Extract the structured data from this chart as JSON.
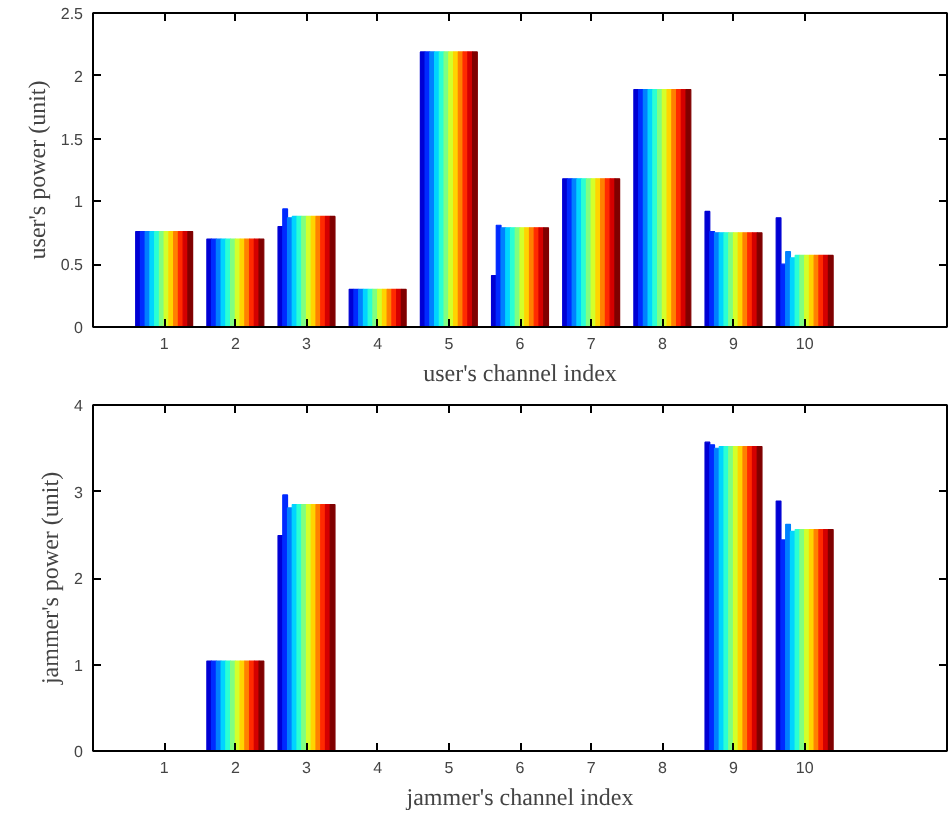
{
  "chart_data": [
    {
      "type": "bar",
      "xlabel": "user's channel index",
      "ylabel": "user's power (unit)",
      "x": [
        1,
        2,
        3,
        4,
        5,
        6,
        7,
        8,
        9,
        10
      ],
      "xlim": [
        0,
        12
      ],
      "xticks": [
        1,
        2,
        3,
        4,
        5,
        6,
        7,
        8,
        9,
        10
      ],
      "ylim": [
        0,
        2.5
      ],
      "yticks": [
        0,
        0.5,
        1,
        1.5,
        2,
        2.5
      ],
      "grid": false,
      "series": [
        {
          "color": "#0000d4",
          "values": [
            0.76,
            0.7,
            0.8,
            0.3,
            2.19,
            0.41,
            1.18,
            1.89,
            0.92,
            0.87
          ]
        },
        {
          "color": "#002aff",
          "values": [
            0.76,
            0.7,
            0.94,
            0.3,
            2.19,
            0.81,
            1.18,
            1.89,
            0.76,
            0.5
          ]
        },
        {
          "color": "#0080ff",
          "values": [
            0.76,
            0.7,
            0.87,
            0.3,
            2.19,
            0.79,
            1.18,
            1.89,
            0.75,
            0.6
          ]
        },
        {
          "color": "#00d4ff",
          "values": [
            0.76,
            0.7,
            0.88,
            0.3,
            2.19,
            0.79,
            1.18,
            1.89,
            0.75,
            0.55
          ]
        },
        {
          "color": "#2affd4",
          "values": [
            0.76,
            0.7,
            0.88,
            0.3,
            2.19,
            0.79,
            1.18,
            1.89,
            0.75,
            0.57
          ]
        },
        {
          "color": "#80ff80",
          "values": [
            0.76,
            0.7,
            0.88,
            0.3,
            2.19,
            0.79,
            1.18,
            1.89,
            0.75,
            0.57
          ]
        },
        {
          "color": "#d4ff2a",
          "values": [
            0.76,
            0.7,
            0.88,
            0.3,
            2.19,
            0.79,
            1.18,
            1.89,
            0.75,
            0.57
          ]
        },
        {
          "color": "#ffd400",
          "values": [
            0.76,
            0.7,
            0.88,
            0.3,
            2.19,
            0.79,
            1.18,
            1.89,
            0.75,
            0.57
          ]
        },
        {
          "color": "#ff8000",
          "values": [
            0.76,
            0.7,
            0.88,
            0.3,
            2.19,
            0.79,
            1.18,
            1.89,
            0.75,
            0.57
          ]
        },
        {
          "color": "#ff2a00",
          "values": [
            0.76,
            0.7,
            0.88,
            0.3,
            2.19,
            0.79,
            1.18,
            1.89,
            0.75,
            0.57
          ]
        },
        {
          "color": "#d40000",
          "values": [
            0.76,
            0.7,
            0.88,
            0.3,
            2.19,
            0.79,
            1.18,
            1.89,
            0.75,
            0.57
          ]
        },
        {
          "color": "#800000",
          "values": [
            0.76,
            0.7,
            0.88,
            0.3,
            2.19,
            0.79,
            1.18,
            1.89,
            0.75,
            0.57
          ]
        }
      ]
    },
    {
      "type": "bar",
      "xlabel": "jammer's channel index",
      "ylabel": "jammer's power (unit)",
      "x": [
        1,
        2,
        3,
        4,
        5,
        6,
        7,
        8,
        9,
        10
      ],
      "xlim": [
        0,
        12
      ],
      "xticks": [
        1,
        2,
        3,
        4,
        5,
        6,
        7,
        8,
        9,
        10
      ],
      "ylim": [
        0,
        4
      ],
      "yticks": [
        0,
        1,
        2,
        3,
        4
      ],
      "grid": false,
      "series": [
        {
          "color": "#0000d4",
          "values": [
            0,
            1.04,
            2.49,
            0,
            0,
            0,
            0,
            0,
            3.57,
            2.89
          ]
        },
        {
          "color": "#002aff",
          "values": [
            0,
            1.04,
            2.96,
            0,
            0,
            0,
            0,
            0,
            3.54,
            2.44
          ]
        },
        {
          "color": "#0080ff",
          "values": [
            0,
            1.04,
            2.81,
            0,
            0,
            0,
            0,
            0,
            3.5,
            2.62
          ]
        },
        {
          "color": "#00d4ff",
          "values": [
            0,
            1.04,
            2.85,
            0,
            0,
            0,
            0,
            0,
            3.52,
            2.54
          ]
        },
        {
          "color": "#2affd4",
          "values": [
            0,
            1.04,
            2.85,
            0,
            0,
            0,
            0,
            0,
            3.52,
            2.56
          ]
        },
        {
          "color": "#80ff80",
          "values": [
            0,
            1.04,
            2.85,
            0,
            0,
            0,
            0,
            0,
            3.52,
            2.56
          ]
        },
        {
          "color": "#d4ff2a",
          "values": [
            0,
            1.04,
            2.85,
            0,
            0,
            0,
            0,
            0,
            3.52,
            2.56
          ]
        },
        {
          "color": "#ffd400",
          "values": [
            0,
            1.04,
            2.85,
            0,
            0,
            0,
            0,
            0,
            3.52,
            2.56
          ]
        },
        {
          "color": "#ff8000",
          "values": [
            0,
            1.04,
            2.85,
            0,
            0,
            0,
            0,
            0,
            3.52,
            2.56
          ]
        },
        {
          "color": "#ff2a00",
          "values": [
            0,
            1.04,
            2.85,
            0,
            0,
            0,
            0,
            0,
            3.52,
            2.56
          ]
        },
        {
          "color": "#d40000",
          "values": [
            0,
            1.04,
            2.85,
            0,
            0,
            0,
            0,
            0,
            3.52,
            2.56
          ]
        },
        {
          "color": "#800000",
          "values": [
            0,
            1.04,
            2.85,
            0,
            0,
            0,
            0,
            0,
            3.52,
            2.56
          ]
        }
      ]
    }
  ]
}
